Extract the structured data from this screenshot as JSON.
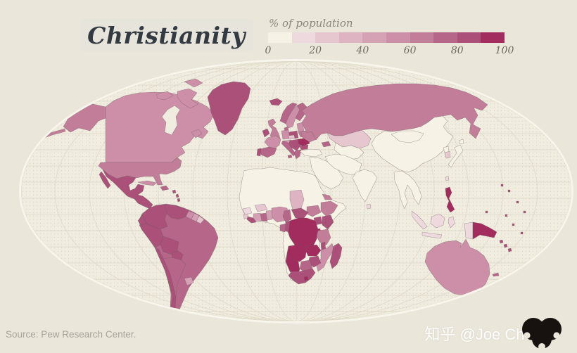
{
  "header": {
    "title": "Christianity"
  },
  "legend": {
    "label": "% of population",
    "ticks": [
      "0",
      "20",
      "40",
      "60",
      "80",
      "100"
    ],
    "colors": [
      "#f6f3e6",
      "#eed9de",
      "#e6c6cf",
      "#deb4c2",
      "#d5a2b5",
      "#cc8fa7",
      "#c27d98",
      "#b66789",
      "#ab5078",
      "#a22c5e"
    ]
  },
  "footer": {
    "source": "Source: Pew Research Center.",
    "watermark": "知乎 @Joe Chen"
  },
  "map_style": {
    "page_bg": "#eae6da",
    "ocean": "#f0ecdf",
    "ocean_dots": "#ddd7c5",
    "graticule": "#dcd6c3",
    "rim": "#f8f5ec",
    "border": "#6d5a62",
    "watermark_logo_color": "#17120f"
  },
  "chart_data": {
    "type": "heatmap",
    "subtype": "choropleth-world-map",
    "title": "Christianity",
    "legend_label": "% of population",
    "scale": {
      "min": 0,
      "max": 100,
      "step_bins": 10,
      "tick_labels": [
        0,
        20,
        40,
        60,
        80,
        100
      ]
    },
    "regions": {
      "greenland": {
        "name": "Greenland",
        "bin": 8,
        "value": 85
      },
      "canada": {
        "name": "Canada",
        "bin": 5,
        "value": 65
      },
      "alaska": {
        "name": "Alaska (USA)",
        "bin": 6,
        "value": 75
      },
      "usa": {
        "name": "United States",
        "bin": 6,
        "value": 75
      },
      "mexico": {
        "name": "Mexico",
        "bin": 8,
        "value": 90
      },
      "central-america": {
        "name": "Central America",
        "bin": 8,
        "value": 88
      },
      "cuba": {
        "name": "Cuba",
        "bin": 5,
        "value": 58
      },
      "hispaniola": {
        "name": "Hispaniola",
        "bin": 7,
        "value": 88
      },
      "caribbean": {
        "name": "Caribbean islands",
        "bin": 8,
        "value": 85
      },
      "colombia": {
        "name": "Colombia",
        "bin": 8,
        "value": 90
      },
      "venezuela": {
        "name": "Venezuela",
        "bin": 8,
        "value": 89
      },
      "guyana": {
        "name": "Guyana",
        "bin": 5,
        "value": 60
      },
      "suriname": {
        "name": "Suriname",
        "bin": 4,
        "value": 50
      },
      "french-guiana": {
        "name": "French Guiana",
        "bin": 2,
        "value": 28
      },
      "ecuador": {
        "name": "Ecuador",
        "bin": 8,
        "value": 92
      },
      "peru": {
        "name": "Peru",
        "bin": 8,
        "value": 93
      },
      "bolivia": {
        "name": "Bolivia",
        "bin": 8,
        "value": 92
      },
      "brazil": {
        "name": "Brazil",
        "bin": 7,
        "value": 88
      },
      "paraguay": {
        "name": "Paraguay",
        "bin": 8,
        "value": 95
      },
      "uruguay": {
        "name": "Uruguay",
        "bin": 4,
        "value": 55
      },
      "argentina": {
        "name": "Argentina",
        "bin": 7,
        "value": 85
      },
      "chile": {
        "name": "Chile",
        "bin": 8,
        "value": 88
      },
      "iceland": {
        "name": "Iceland",
        "bin": 8,
        "value": 92
      },
      "ireland": {
        "name": "Ireland",
        "bin": 8,
        "value": 90
      },
      "uk": {
        "name": "United Kingdom",
        "bin": 6,
        "value": 70
      },
      "norway": {
        "name": "Norway",
        "bin": 7,
        "value": 82
      },
      "sweden": {
        "name": "Sweden",
        "bin": 5,
        "value": 65
      },
      "finland": {
        "name": "Finland",
        "bin": 7,
        "value": 80
      },
      "denmark": {
        "name": "Denmark",
        "bin": 7,
        "value": 82
      },
      "baltics": {
        "name": "Baltic states",
        "bin": 5,
        "value": 60
      },
      "belarus": {
        "name": "Belarus",
        "bin": 6,
        "value": 70
      },
      "poland": {
        "name": "Poland",
        "bin": 8,
        "value": 92
      },
      "germany": {
        "name": "Germany",
        "bin": 5,
        "value": 67
      },
      "czech": {
        "name": "Czechia",
        "bin": 2,
        "value": 25
      },
      "austria": {
        "name": "Austria / Alps",
        "bin": 4,
        "value": 55
      },
      "france": {
        "name": "France",
        "bin": 5,
        "value": 62
      },
      "spain": {
        "name": "Spain",
        "bin": 7,
        "value": 78
      },
      "portugal": {
        "name": "Portugal",
        "bin": 8,
        "value": 90
      },
      "italy": {
        "name": "Italy",
        "bin": 7,
        "value": 82
      },
      "balkans": {
        "name": "Balkans",
        "bin": 8,
        "value": 85
      },
      "romania": {
        "name": "Romania",
        "bin": 9,
        "value": 98
      },
      "bulgaria": {
        "name": "Bulgaria",
        "bin": 8,
        "value": 85
      },
      "greece": {
        "name": "Greece",
        "bin": 7,
        "value": 88
      },
      "ukraine": {
        "name": "Ukraine",
        "bin": 6,
        "value": 78
      },
      "russia": {
        "name": "Russia",
        "bin": 6,
        "value": 72
      },
      "caucasus": {
        "name": "Caucasus",
        "bin": 7,
        "value": 80
      },
      "turkey": {
        "name": "Turkey",
        "bin": 0,
        "value": 1
      },
      "kazakhstan": {
        "name": "Kazakhstan",
        "bin": 2,
        "value": 25
      },
      "central-asia": {
        "name": "Central Asia",
        "bin": 0,
        "value": 3
      },
      "middle-east": {
        "name": "Middle East / Arabia",
        "bin": 0,
        "value": 4
      },
      "iran-afghan-pak": {
        "name": "Iran / Afghanistan / Pakistan",
        "bin": 0,
        "value": 1
      },
      "india": {
        "name": "India",
        "bin": 0,
        "value": 3
      },
      "sri-lanka": {
        "name": "Sri Lanka",
        "bin": 1,
        "value": 8
      },
      "china": {
        "name": "China",
        "bin": 0,
        "value": 5
      },
      "mongolia": {
        "name": "Mongolia",
        "bin": 0,
        "value": 2
      },
      "se-asia": {
        "name": "Mainland Southeast Asia",
        "bin": 0,
        "value": 5
      },
      "north-korea": {
        "name": "North Korea",
        "bin": 0,
        "value": 2
      },
      "south-korea": {
        "name": "South Korea",
        "bin": 2,
        "value": 29
      },
      "japan": {
        "name": "Japan",
        "bin": 0,
        "value": 2
      },
      "taiwan": {
        "name": "Taiwan",
        "bin": 1,
        "value": 7
      },
      "philippines": {
        "name": "Philippines",
        "bin": 9,
        "value": 93
      },
      "indonesia": {
        "name": "Indonesia",
        "bin": 1,
        "value": 10
      },
      "indonesian-papua": {
        "name": "Indonesian Papua",
        "bin": 1,
        "value": 15
      },
      "png": {
        "name": "Papua New Guinea",
        "bin": 9,
        "value": 99
      },
      "solomons": {
        "name": "Solomon Islands",
        "bin": 8,
        "value": 95
      },
      "australia": {
        "name": "Australia",
        "bin": 5,
        "value": 65
      },
      "new-zealand": {
        "name": "New Zealand",
        "bin": 5,
        "value": 57
      },
      "new-caledonia": {
        "name": "New Caledonia",
        "bin": 7,
        "value": 85
      },
      "pacific-islands": {
        "name": "Pacific islands",
        "bin": 8,
        "value": 90
      },
      "north-africa": {
        "name": "North Africa / Sahara / Horn",
        "bin": 0,
        "value": 3
      },
      "guinea": {
        "name": "Guinea",
        "bin": 1,
        "value": 10
      },
      "sierra-leone": {
        "name": "Sierra Leone",
        "bin": 2,
        "value": 21
      },
      "liberia": {
        "name": "Liberia",
        "bin": 8,
        "value": 85
      },
      "ivory-coast": {
        "name": "Côte d'Ivoire",
        "bin": 4,
        "value": 44
      },
      "ghana": {
        "name": "Ghana",
        "bin": 7,
        "value": 75
      },
      "togo-benin": {
        "name": "Togo / Benin",
        "bin": 4,
        "value": 45
      },
      "burkina-faso": {
        "name": "Burkina Faso",
        "bin": 2,
        "value": 22
      },
      "nigeria": {
        "name": "Nigeria",
        "bin": 5,
        "value": 50
      },
      "chad": {
        "name": "Chad",
        "bin": 3,
        "value": 40
      },
      "south-sudan": {
        "name": "South Sudan",
        "bin": 6,
        "value": 60
      },
      "eritrea": {
        "name": "Eritrea",
        "bin": 6,
        "value": 63
      },
      "ethiopia": {
        "name": "Ethiopia",
        "bin": 6,
        "value": 62
      },
      "cameroon": {
        "name": "Cameroon",
        "bin": 7,
        "value": 70
      },
      "car": {
        "name": "Central African Republic",
        "bin": 8,
        "value": 89
      },
      "uganda": {
        "name": "Uganda",
        "bin": 8,
        "value": 87
      },
      "kenya": {
        "name": "Kenya",
        "bin": 8,
        "value": 85
      },
      "drc": {
        "name": "DR Congo",
        "bin": 9,
        "value": 95
      },
      "congo": {
        "name": "Republic of the Congo",
        "bin": 8,
        "value": 85
      },
      "gabon": {
        "name": "Gabon",
        "bin": 7,
        "value": 77
      },
      "rwanda-burundi": {
        "name": "Rwanda / Burundi",
        "bin": 9,
        "value": 93
      },
      "tanzania": {
        "name": "Tanzania",
        "bin": 6,
        "value": 61
      },
      "angola": {
        "name": "Angola",
        "bin": 9,
        "value": 90
      },
      "zambia": {
        "name": "Zambia",
        "bin": 9,
        "value": 97
      },
      "malawi": {
        "name": "Malawi",
        "bin": 8,
        "value": 82
      },
      "mozambique": {
        "name": "Mozambique",
        "bin": 5,
        "value": 56
      },
      "zimbabwe": {
        "name": "Zimbabwe",
        "bin": 8,
        "value": 87
      },
      "botswana": {
        "name": "Botswana",
        "bin": 7,
        "value": 72
      },
      "namibia": {
        "name": "Namibia",
        "bin": 9,
        "value": 97
      },
      "south-africa": {
        "name": "South Africa",
        "bin": 8,
        "value": 81
      },
      "lesotho": {
        "name": "Lesotho",
        "bin": 9,
        "value": 95
      },
      "madagascar": {
        "name": "Madagascar",
        "bin": 8,
        "value": 85
      }
    }
  }
}
